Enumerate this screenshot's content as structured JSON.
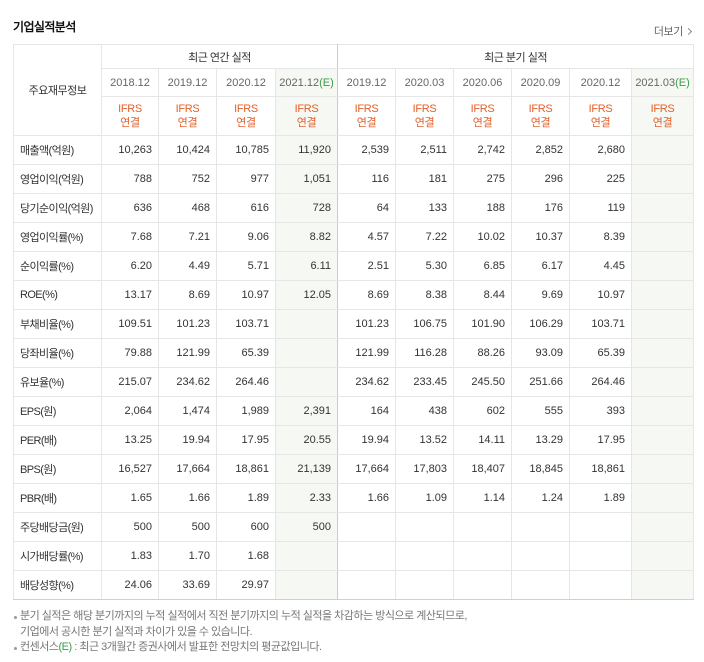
{
  "title": "기업실적분석",
  "more_link": {
    "label": "더보기",
    "icon": "chevron-right-icon"
  },
  "table": {
    "row_header": "주요재무정보",
    "annual": {
      "label": "최근 연간 실적",
      "periods": [
        {
          "label": "2018.12",
          "estimate_mark": "",
          "standard": "IFRS",
          "basis": "연결"
        },
        {
          "label": "2019.12",
          "estimate_mark": "",
          "standard": "IFRS",
          "basis": "연결"
        },
        {
          "label": "2020.12",
          "estimate_mark": "",
          "standard": "IFRS",
          "basis": "연결"
        },
        {
          "label": "2021.12",
          "estimate_mark": "(E)",
          "standard": "IFRS",
          "basis": "연결"
        }
      ]
    },
    "quarterly": {
      "label": "최근 분기 실적",
      "periods": [
        {
          "label": "2019.12",
          "estimate_mark": "",
          "standard": "IFRS",
          "basis": "연결"
        },
        {
          "label": "2020.03",
          "estimate_mark": "",
          "standard": "IFRS",
          "basis": "연결"
        },
        {
          "label": "2020.06",
          "estimate_mark": "",
          "standard": "IFRS",
          "basis": "연결"
        },
        {
          "label": "2020.09",
          "estimate_mark": "",
          "standard": "IFRS",
          "basis": "연결"
        },
        {
          "label": "2020.12",
          "estimate_mark": "",
          "standard": "IFRS",
          "basis": "연결"
        },
        {
          "label": "2021.03",
          "estimate_mark": "(E)",
          "standard": "IFRS",
          "basis": "연결"
        }
      ]
    },
    "sections": [
      {
        "rows": [
          {
            "label": "매출액(억원)",
            "annual": [
              "10,263",
              "10,424",
              "10,785",
              "11,920"
            ],
            "quarterly": [
              "2,539",
              "2,511",
              "2,742",
              "2,852",
              "2,680",
              ""
            ]
          },
          {
            "label": "영업이익(억원)",
            "annual": [
              "788",
              "752",
              "977",
              "1,051"
            ],
            "quarterly": [
              "116",
              "181",
              "275",
              "296",
              "225",
              ""
            ]
          },
          {
            "label": "당기순이익(억원)",
            "annual": [
              "636",
              "468",
              "616",
              "728"
            ],
            "quarterly": [
              "64",
              "133",
              "188",
              "176",
              "119",
              ""
            ]
          }
        ]
      },
      {
        "rows": [
          {
            "label": "영업이익률(%)",
            "annual": [
              "7.68",
              "7.21",
              "9.06",
              "8.82"
            ],
            "quarterly": [
              "4.57",
              "7.22",
              "10.02",
              "10.37",
              "8.39",
              ""
            ]
          },
          {
            "label": "순이익률(%)",
            "annual": [
              "6.20",
              "4.49",
              "5.71",
              "6.11"
            ],
            "quarterly": [
              "2.51",
              "5.30",
              "6.85",
              "6.17",
              "4.45",
              ""
            ]
          },
          {
            "label": "ROE(%)",
            "annual": [
              "13.17",
              "8.69",
              "10.97",
              "12.05"
            ],
            "quarterly": [
              "8.69",
              "8.38",
              "8.44",
              "9.69",
              "10.97",
              ""
            ]
          }
        ]
      },
      {
        "rows": [
          {
            "label": "부채비율(%)",
            "annual": [
              "109.51",
              "101.23",
              "103.71",
              ""
            ],
            "quarterly": [
              "101.23",
              "106.75",
              "101.90",
              "106.29",
              "103.71",
              ""
            ]
          },
          {
            "label": "당좌비율(%)",
            "annual": [
              "79.88",
              "121.99",
              "65.39",
              ""
            ],
            "quarterly": [
              "121.99",
              "116.28",
              "88.26",
              "93.09",
              "65.39",
              ""
            ]
          },
          {
            "label": "유보율(%)",
            "annual": [
              "215.07",
              "234.62",
              "264.46",
              ""
            ],
            "quarterly": [
              "234.62",
              "233.45",
              "245.50",
              "251.66",
              "264.46",
              ""
            ]
          }
        ]
      },
      {
        "rows": [
          {
            "label": "EPS(원)",
            "annual": [
              "2,064",
              "1,474",
              "1,989",
              "2,391"
            ],
            "quarterly": [
              "164",
              "438",
              "602",
              "555",
              "393",
              ""
            ]
          },
          {
            "label": "PER(배)",
            "annual": [
              "13.25",
              "19.94",
              "17.95",
              "20.55"
            ],
            "quarterly": [
              "19.94",
              "13.52",
              "14.11",
              "13.29",
              "17.95",
              ""
            ]
          },
          {
            "label": "BPS(원)",
            "annual": [
              "16,527",
              "17,664",
              "18,861",
              "21,139"
            ],
            "quarterly": [
              "17,664",
              "17,803",
              "18,407",
              "18,845",
              "18,861",
              ""
            ]
          },
          {
            "label": "PBR(배)",
            "annual": [
              "1.65",
              "1.66",
              "1.89",
              "2.33"
            ],
            "quarterly": [
              "1.66",
              "1.09",
              "1.14",
              "1.24",
              "1.89",
              ""
            ]
          }
        ]
      },
      {
        "rows": [
          {
            "label": "주당배당금(원)",
            "annual": [
              "500",
              "500",
              "600",
              "500"
            ],
            "quarterly": [
              "",
              "",
              "",
              "",
              "",
              ""
            ]
          },
          {
            "label": "시가배당률(%)",
            "annual": [
              "1.83",
              "1.70",
              "1.68",
              ""
            ],
            "quarterly": [
              "",
              "",
              "",
              "",
              "",
              ""
            ]
          },
          {
            "label": "배당성향(%)",
            "annual": [
              "24.06",
              "33.69",
              "29.97",
              ""
            ],
            "quarterly": [
              "",
              "",
              "",
              "",
              "",
              ""
            ]
          }
        ]
      }
    ]
  },
  "notes": {
    "quarterly_calc": [
      "분기 실적은 해당 분기까지의 누적 실적에서 직전 분기까지의 누적 실적을 차감하는 방식으로 계산되므로,",
      "기업에서 공시한 분기 실적과 차이가 있을 수 있습니다."
    ],
    "consensus": {
      "term": "컨센서스",
      "mark": "(E)",
      "text": " : 최근 3개월간 증권사에서 발표한 전망치의 평균값입니다."
    }
  },
  "colors": {
    "ifrs_label": "#e2602b",
    "estimate_mark": "#3a9d48",
    "estimate_column_bg": "#f6f9f3"
  }
}
